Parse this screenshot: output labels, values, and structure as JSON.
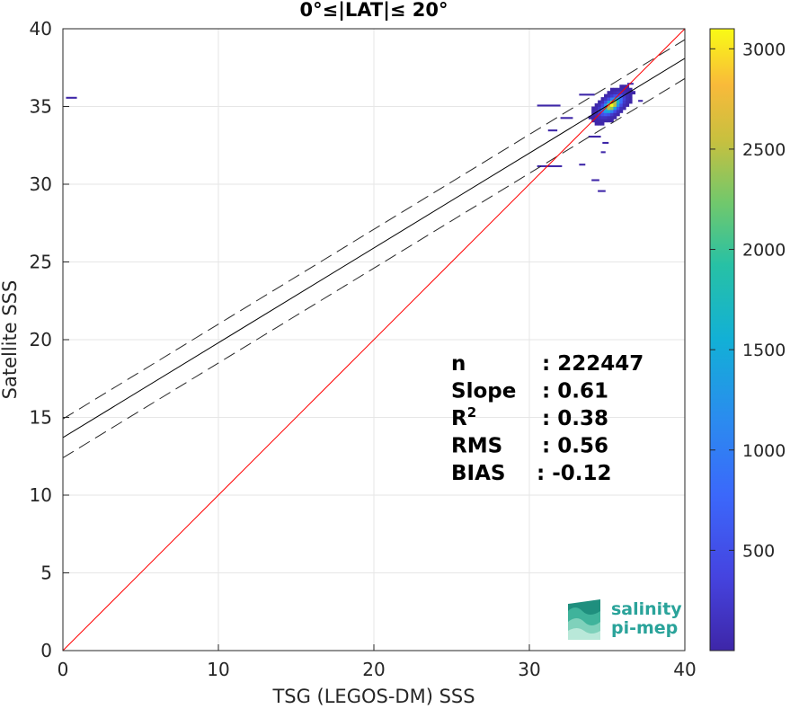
{
  "chart_data": {
    "type": "heatmap",
    "title": "0°≤|LAT|≤ 20°",
    "xlabel": "TSG (LEGOS-DM) SSS",
    "ylabel": "Satellite SSS",
    "xlim": [
      0,
      40
    ],
    "ylim": [
      0,
      40
    ],
    "xticks": [
      "0",
      "10",
      "20",
      "30",
      "40"
    ],
    "yticks": [
      "0",
      "5",
      "10",
      "15",
      "20",
      "25",
      "30",
      "35",
      "40"
    ],
    "grid": true,
    "colorbar": {
      "min": 0,
      "max": 3100,
      "ticks": [
        "500",
        "1000",
        "1500",
        "2000",
        "2500",
        "3000"
      ],
      "colormap": "parula"
    },
    "lines": {
      "identity": {
        "slope": 1,
        "intercept": 0,
        "color": "#ff0000"
      },
      "fit": {
        "slope": 0.61,
        "intercept": 13.7,
        "color": "#000000"
      },
      "fit_upper": {
        "slope": 0.61,
        "intercept": 14.9,
        "style": "dashed"
      },
      "fit_lower": {
        "slope": 0.61,
        "intercept": 12.4,
        "style": "dashed"
      }
    },
    "density_cloud": {
      "center": [
        35.2,
        35.0
      ],
      "spread_x": 0.9,
      "spread_y": 0.8,
      "correlation": 0.6,
      "peak": 3100
    },
    "stats": [
      {
        "label": "n",
        "value": ": 222447"
      },
      {
        "label": "Slope",
        "value": ": 0.61"
      },
      {
        "label": "R",
        "sup": "2",
        "value": ": 0.38"
      },
      {
        "label": "RMS",
        "value": ": 0.56"
      },
      {
        "label": "BIAS",
        "value": ": -0.12"
      }
    ]
  },
  "logo": {
    "line1": "salinity",
    "line2": "pi-mep"
  }
}
